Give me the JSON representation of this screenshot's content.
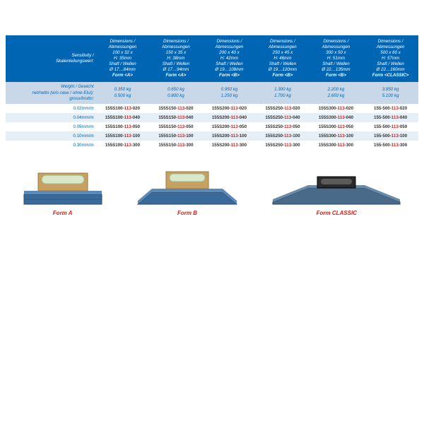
{
  "table": {
    "header": {
      "col0": "Sensitivity /\nSkalenteilungswert:",
      "cols": [
        "Dimensions /\nAbmessungen\n100 x 32 x\nH: 35mm\nShaft / Wellen\nØ 17…84mm\nForm <A>",
        "Dimensions /\nAbmessungen\n150 x 35 x\nH: 38mm\nShaft / Wellen\nØ 17…94mm\nForm <A>",
        "Dimensions /\nAbmessungen\n200 x 40 x\nH: 42mm\nShaft / Wellen\nØ 19…108mm\nForm <B>",
        "Dimensions /\nAbmessungen\n250 x 45 x\nH: 46mm\nShaft / Wellen\nØ 19…120mm\nForm <B>",
        "Dimensions /\nAbmessungen\n300 x 50 x\nH: 51mm\nShaft / Wellen\nØ 22…135mm\nForm <B>",
        "Dimensions /\nAbmessungen\n500 x 60 x\nH: 57mm\nShaft / Wellen\nØ 22…160mm\nForm <CLASSIC>"
      ]
    },
    "weight": {
      "col0": "Weight / Gewicht\nnet/netto (w/o case / ohne Etui):\ngross/brutto:",
      "cols": [
        "0.350 kg\n0.500 kg",
        "0.650 kg\n0.800 kg",
        "0.950 kg\n1.250 kg",
        "1.300 kg\n1.700 kg",
        "2.200 kg\n2.650 kg",
        "3.850 kg\n5.100 kg"
      ]
    },
    "rows": [
      {
        "sens": "0.02mm/m",
        "parts": [
          {
            "p": "155S100-",
            "m": "113",
            "s": "-020"
          },
          {
            "p": "155S150-",
            "m": "113",
            "s": "-020"
          },
          {
            "p": "155S200-",
            "m": "113",
            "s": "-020"
          },
          {
            "p": "155S250-",
            "m": "113",
            "s": "-020"
          },
          {
            "p": "155S300-",
            "m": "113",
            "s": "-020"
          },
          {
            "p": "155-500-",
            "m": "113",
            "s": "-020"
          }
        ]
      },
      {
        "sens": "0.04mm/m",
        "parts": [
          {
            "p": "155S100-",
            "m": "113",
            "s": "-040"
          },
          {
            "p": "155S150-",
            "m": "113",
            "s": "-040"
          },
          {
            "p": "155S200-",
            "m": "113",
            "s": "-040"
          },
          {
            "p": "155S250-",
            "m": "113",
            "s": "-040"
          },
          {
            "p": "155S300-",
            "m": "113",
            "s": "-040"
          },
          {
            "p": "155-500-",
            "m": "113",
            "s": "-040"
          }
        ]
      },
      {
        "sens": "0.05mm/m",
        "parts": [
          {
            "p": "155S100-",
            "m": "113",
            "s": "-050"
          },
          {
            "p": "155S150-",
            "m": "113",
            "s": "-050"
          },
          {
            "p": "155S200-",
            "m": "113",
            "s": "-050"
          },
          {
            "p": "155S250-",
            "m": "113",
            "s": "-050"
          },
          {
            "p": "155S300-",
            "m": "113",
            "s": "-050"
          },
          {
            "p": "155-500-",
            "m": "113",
            "s": "-050"
          }
        ]
      },
      {
        "sens": "0.10mm/m",
        "parts": [
          {
            "p": "155S100-",
            "m": "113",
            "s": "-100"
          },
          {
            "p": "155S150-",
            "m": "113",
            "s": "-100"
          },
          {
            "p": "155S200-",
            "m": "113",
            "s": "-100"
          },
          {
            "p": "155S250-",
            "m": "113",
            "s": "-100"
          },
          {
            "p": "155S300-",
            "m": "113",
            "s": "-100"
          },
          {
            "p": "155-500-",
            "m": "113",
            "s": "-100"
          }
        ]
      },
      {
        "sens": "0.30mm/m",
        "parts": [
          {
            "p": "155S100-",
            "m": "113",
            "s": "-300"
          },
          {
            "p": "155S150-",
            "m": "113",
            "s": "-300"
          },
          {
            "p": "155S200-",
            "m": "113",
            "s": "-300"
          },
          {
            "p": "155S250-",
            "m": "113",
            "s": "-300"
          },
          {
            "p": "155S300-",
            "m": "113",
            "s": "-300"
          },
          {
            "p": "155-500-",
            "m": "113",
            "s": "-300"
          }
        ]
      }
    ]
  },
  "products": [
    {
      "label": "Form A"
    },
    {
      "label": "Form B"
    },
    {
      "label": "Form CLASSIC"
    }
  ],
  "colors": {
    "header_bg": "#0066b3",
    "weight_bg": "#c8d8e8",
    "alt_row_bg": "#e6eef6",
    "accent_red": "#d62020",
    "tool_blue": "#3a6a9a",
    "tool_brass": "#c8a060",
    "tool_dark": "#2a2a2a"
  }
}
